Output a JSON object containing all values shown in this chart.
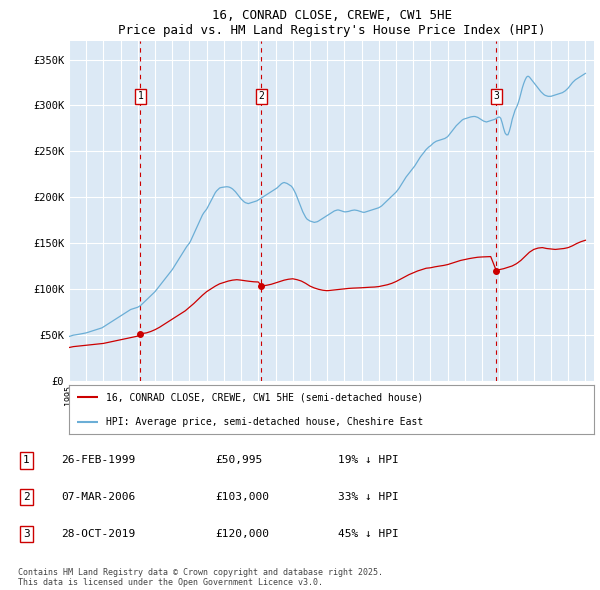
{
  "title": "16, CONRAD CLOSE, CREWE, CW1 5HE",
  "subtitle": "Price paid vs. HM Land Registry's House Price Index (HPI)",
  "ylabel_ticks": [
    "£0",
    "£50K",
    "£100K",
    "£150K",
    "£200K",
    "£250K",
    "£300K",
    "£350K"
  ],
  "ytick_values": [
    0,
    50000,
    100000,
    150000,
    200000,
    250000,
    300000,
    350000
  ],
  "ylim": [
    0,
    370000
  ],
  "xlim_start": 1995.0,
  "xlim_end": 2025.5,
  "fig_bg_color": "#ffffff",
  "plot_bg_color": "#dce9f5",
  "grid_color": "#ffffff",
  "sale_color": "#cc0000",
  "hpi_color": "#6baed6",
  "sale_points": [
    {
      "year": 1999.15,
      "price": 50995
    },
    {
      "year": 2006.18,
      "price": 103000
    },
    {
      "year": 2019.82,
      "price": 120000
    }
  ],
  "sale_labels": [
    "1",
    "2",
    "3"
  ],
  "sale_vline_color": "#cc0000",
  "legend_entries": [
    "16, CONRAD CLOSE, CREWE, CW1 5HE (semi-detached house)",
    "HPI: Average price, semi-detached house, Cheshire East"
  ],
  "table_data": [
    {
      "num": "1",
      "date": "26-FEB-1999",
      "price": "£50,995",
      "hpi": "19% ↓ HPI"
    },
    {
      "num": "2",
      "date": "07-MAR-2006",
      "price": "£103,000",
      "hpi": "33% ↓ HPI"
    },
    {
      "num": "3",
      "date": "28-OCT-2019",
      "price": "£120,000",
      "hpi": "45% ↓ HPI"
    }
  ],
  "footer": "Contains HM Land Registry data © Crown copyright and database right 2025.\nThis data is licensed under the Open Government Licence v3.0.",
  "hpi_data_x": [
    1995.0,
    1995.083,
    1995.167,
    1995.25,
    1995.333,
    1995.417,
    1995.5,
    1995.583,
    1995.667,
    1995.75,
    1995.833,
    1995.917,
    1996.0,
    1996.083,
    1996.167,
    1996.25,
    1996.333,
    1996.417,
    1996.5,
    1996.583,
    1996.667,
    1996.75,
    1996.833,
    1996.917,
    1997.0,
    1997.083,
    1997.167,
    1997.25,
    1997.333,
    1997.417,
    1997.5,
    1997.583,
    1997.667,
    1997.75,
    1997.833,
    1997.917,
    1998.0,
    1998.083,
    1998.167,
    1998.25,
    1998.333,
    1998.417,
    1998.5,
    1998.583,
    1998.667,
    1998.75,
    1998.833,
    1998.917,
    1999.0,
    1999.083,
    1999.167,
    1999.25,
    1999.333,
    1999.417,
    1999.5,
    1999.583,
    1999.667,
    1999.75,
    1999.833,
    1999.917,
    2000.0,
    2000.083,
    2000.167,
    2000.25,
    2000.333,
    2000.417,
    2000.5,
    2000.583,
    2000.667,
    2000.75,
    2000.833,
    2000.917,
    2001.0,
    2001.083,
    2001.167,
    2001.25,
    2001.333,
    2001.417,
    2001.5,
    2001.583,
    2001.667,
    2001.75,
    2001.833,
    2001.917,
    2002.0,
    2002.083,
    2002.167,
    2002.25,
    2002.333,
    2002.417,
    2002.5,
    2002.583,
    2002.667,
    2002.75,
    2002.833,
    2002.917,
    2003.0,
    2003.083,
    2003.167,
    2003.25,
    2003.333,
    2003.417,
    2003.5,
    2003.583,
    2003.667,
    2003.75,
    2003.833,
    2003.917,
    2004.0,
    2004.083,
    2004.167,
    2004.25,
    2004.333,
    2004.417,
    2004.5,
    2004.583,
    2004.667,
    2004.75,
    2004.833,
    2004.917,
    2005.0,
    2005.083,
    2005.167,
    2005.25,
    2005.333,
    2005.417,
    2005.5,
    2005.583,
    2005.667,
    2005.75,
    2005.833,
    2005.917,
    2006.0,
    2006.083,
    2006.167,
    2006.25,
    2006.333,
    2006.417,
    2006.5,
    2006.583,
    2006.667,
    2006.75,
    2006.833,
    2006.917,
    2007.0,
    2007.083,
    2007.167,
    2007.25,
    2007.333,
    2007.417,
    2007.5,
    2007.583,
    2007.667,
    2007.75,
    2007.833,
    2007.917,
    2008.0,
    2008.083,
    2008.167,
    2008.25,
    2008.333,
    2008.417,
    2008.5,
    2008.583,
    2008.667,
    2008.75,
    2008.833,
    2008.917,
    2009.0,
    2009.083,
    2009.167,
    2009.25,
    2009.333,
    2009.417,
    2009.5,
    2009.583,
    2009.667,
    2009.75,
    2009.833,
    2009.917,
    2010.0,
    2010.083,
    2010.167,
    2010.25,
    2010.333,
    2010.417,
    2010.5,
    2010.583,
    2010.667,
    2010.75,
    2010.833,
    2010.917,
    2011.0,
    2011.083,
    2011.167,
    2011.25,
    2011.333,
    2011.417,
    2011.5,
    2011.583,
    2011.667,
    2011.75,
    2011.833,
    2011.917,
    2012.0,
    2012.083,
    2012.167,
    2012.25,
    2012.333,
    2012.417,
    2012.5,
    2012.583,
    2012.667,
    2012.75,
    2012.833,
    2012.917,
    2013.0,
    2013.083,
    2013.167,
    2013.25,
    2013.333,
    2013.417,
    2013.5,
    2013.583,
    2013.667,
    2013.75,
    2013.833,
    2013.917,
    2014.0,
    2014.083,
    2014.167,
    2014.25,
    2014.333,
    2014.417,
    2014.5,
    2014.583,
    2014.667,
    2014.75,
    2014.833,
    2014.917,
    2015.0,
    2015.083,
    2015.167,
    2015.25,
    2015.333,
    2015.417,
    2015.5,
    2015.583,
    2015.667,
    2015.75,
    2015.833,
    2015.917,
    2016.0,
    2016.083,
    2016.167,
    2016.25,
    2016.333,
    2016.417,
    2016.5,
    2016.583,
    2016.667,
    2016.75,
    2016.833,
    2016.917,
    2017.0,
    2017.083,
    2017.167,
    2017.25,
    2017.333,
    2017.417,
    2017.5,
    2017.583,
    2017.667,
    2017.75,
    2017.833,
    2017.917,
    2018.0,
    2018.083,
    2018.167,
    2018.25,
    2018.333,
    2018.417,
    2018.5,
    2018.583,
    2018.667,
    2018.75,
    2018.833,
    2018.917,
    2019.0,
    2019.083,
    2019.167,
    2019.25,
    2019.333,
    2019.417,
    2019.5,
    2019.583,
    2019.667,
    2019.75,
    2019.833,
    2019.917,
    2020.0,
    2020.083,
    2020.167,
    2020.25,
    2020.333,
    2020.417,
    2020.5,
    2020.583,
    2020.667,
    2020.75,
    2020.833,
    2020.917,
    2021.0,
    2021.083,
    2021.167,
    2021.25,
    2021.333,
    2021.417,
    2021.5,
    2021.583,
    2021.667,
    2021.75,
    2021.833,
    2021.917,
    2022.0,
    2022.083,
    2022.167,
    2022.25,
    2022.333,
    2022.417,
    2022.5,
    2022.583,
    2022.667,
    2022.75,
    2022.833,
    2022.917,
    2023.0,
    2023.083,
    2023.167,
    2023.25,
    2023.333,
    2023.417,
    2023.5,
    2023.583,
    2023.667,
    2023.75,
    2023.833,
    2023.917,
    2024.0,
    2024.083,
    2024.167,
    2024.25,
    2024.333,
    2024.417,
    2024.5,
    2024.583,
    2024.667,
    2024.75,
    2024.833,
    2024.917,
    2025.0
  ],
  "hpi_data_y": [
    48000,
    48500,
    49000,
    49500,
    49800,
    50000,
    50200,
    50500,
    50800,
    51000,
    51300,
    51600,
    52000,
    52500,
    53000,
    53500,
    54000,
    54500,
    55000,
    55500,
    56000,
    56500,
    57000,
    57500,
    58500,
    59500,
    60500,
    61500,
    62500,
    63500,
    64500,
    65500,
    66500,
    67500,
    68500,
    69500,
    70500,
    71500,
    72500,
    73500,
    74500,
    75500,
    76500,
    77500,
    78000,
    78500,
    79000,
    79500,
    80000,
    81000,
    82000,
    83500,
    85000,
    86500,
    88000,
    89500,
    91000,
    92500,
    94000,
    95500,
    97000,
    99000,
    101000,
    103000,
    105000,
    107000,
    109000,
    111000,
    113000,
    115000,
    117000,
    119000,
    121000,
    123500,
    126000,
    128500,
    131000,
    133500,
    136000,
    138500,
    141000,
    143500,
    146000,
    148000,
    150000,
    153000,
    156500,
    160000,
    163500,
    167000,
    170500,
    174000,
    177500,
    180500,
    183000,
    185000,
    187000,
    190000,
    193000,
    196000,
    199000,
    202000,
    205000,
    207000,
    208500,
    210000,
    210500,
    210800,
    211000,
    211200,
    211400,
    211200,
    210800,
    210000,
    209000,
    207500,
    206000,
    204000,
    202000,
    200000,
    198000,
    196500,
    195000,
    194000,
    193500,
    193000,
    193500,
    194000,
    194500,
    195000,
    195500,
    196000,
    197000,
    198000,
    199000,
    200000,
    201000,
    202000,
    203000,
    204000,
    205000,
    206000,
    207000,
    208000,
    209000,
    210000,
    211500,
    213000,
    214500,
    215500,
    216000,
    215500,
    215000,
    214000,
    213000,
    212000,
    210000,
    207000,
    204000,
    200000,
    196000,
    192000,
    188000,
    184000,
    181000,
    178000,
    176000,
    175000,
    174000,
    173500,
    173000,
    172500,
    172800,
    173200,
    174000,
    175000,
    176000,
    177000,
    178000,
    179000,
    180000,
    181000,
    182000,
    183000,
    184000,
    185000,
    185500,
    186000,
    186000,
    185500,
    185000,
    184500,
    184000,
    184000,
    184200,
    184500,
    185000,
    185500,
    185800,
    186000,
    185800,
    185500,
    185000,
    184500,
    184000,
    183500,
    183500,
    184000,
    184500,
    185000,
    185500,
    186000,
    186500,
    187000,
    187500,
    188000,
    188500,
    189500,
    190500,
    192000,
    193500,
    195000,
    196500,
    198000,
    199500,
    201000,
    202500,
    204000,
    205500,
    207500,
    209500,
    212000,
    214500,
    217000,
    219500,
    222000,
    224000,
    226000,
    228000,
    230000,
    232000,
    234000,
    236500,
    239000,
    241500,
    244000,
    246000,
    248000,
    250000,
    252000,
    253500,
    255000,
    256000,
    257500,
    259000,
    260000,
    261000,
    261500,
    262000,
    262500,
    263000,
    263500,
    264000,
    265000,
    266000,
    268000,
    270000,
    272000,
    274000,
    276000,
    278000,
    279500,
    281000,
    282500,
    284000,
    285000,
    285500,
    286000,
    286500,
    287000,
    287500,
    287800,
    288000,
    288000,
    287500,
    287000,
    286000,
    285000,
    284000,
    283000,
    282500,
    282000,
    282500,
    283000,
    283500,
    284000,
    284500,
    285000,
    286000,
    287000,
    287500,
    286000,
    281000,
    275000,
    270000,
    268000,
    268000,
    272000,
    278000,
    285000,
    290000,
    295000,
    298000,
    302000,
    307000,
    313000,
    319000,
    324000,
    328000,
    331000,
    332000,
    331000,
    329000,
    327000,
    325000,
    323000,
    321000,
    319000,
    317000,
    315000,
    313500,
    312000,
    311000,
    310500,
    310000,
    310000,
    310000,
    310500,
    311000,
    311500,
    312000,
    312500,
    313000,
    313500,
    314000,
    315000,
    316000,
    317500,
    319000,
    321000,
    323000,
    325000,
    326500,
    328000,
    329000,
    330000,
    331000,
    332000,
    333000,
    334000,
    335000
  ],
  "red_data_x": [
    1995.0,
    1995.25,
    1995.5,
    1995.75,
    1996.0,
    1996.25,
    1996.5,
    1996.75,
    1997.0,
    1997.25,
    1997.5,
    1997.75,
    1998.0,
    1998.25,
    1998.5,
    1998.75,
    1999.0,
    1999.15,
    1999.5,
    1999.75,
    2000.0,
    2000.25,
    2000.5,
    2000.75,
    2001.0,
    2001.25,
    2001.5,
    2001.75,
    2002.0,
    2002.25,
    2002.5,
    2002.75,
    2003.0,
    2003.25,
    2003.5,
    2003.75,
    2004.0,
    2004.25,
    2004.5,
    2004.75,
    2005.0,
    2005.25,
    2005.5,
    2005.75,
    2006.0,
    2006.18,
    2006.5,
    2006.75,
    2007.0,
    2007.25,
    2007.5,
    2007.75,
    2008.0,
    2008.25,
    2008.5,
    2008.75,
    2009.0,
    2009.25,
    2009.5,
    2009.75,
    2010.0,
    2010.25,
    2010.5,
    2010.75,
    2011.0,
    2011.25,
    2011.5,
    2011.75,
    2012.0,
    2012.25,
    2012.5,
    2012.75,
    2013.0,
    2013.25,
    2013.5,
    2013.75,
    2014.0,
    2014.25,
    2014.5,
    2014.75,
    2015.0,
    2015.25,
    2015.5,
    2015.75,
    2016.0,
    2016.25,
    2016.5,
    2016.75,
    2017.0,
    2017.25,
    2017.5,
    2017.75,
    2018.0,
    2018.25,
    2018.5,
    2018.75,
    2019.0,
    2019.25,
    2019.5,
    2019.82,
    2020.0,
    2020.25,
    2020.5,
    2020.75,
    2021.0,
    2021.25,
    2021.5,
    2021.75,
    2022.0,
    2022.25,
    2022.5,
    2022.75,
    2023.0,
    2023.25,
    2023.5,
    2023.75,
    2024.0,
    2024.25,
    2024.5,
    2024.75,
    2025.0
  ],
  "red_data_y": [
    36000,
    37000,
    37500,
    38000,
    38500,
    39000,
    39500,
    40000,
    40500,
    41500,
    42500,
    43500,
    44500,
    45500,
    46500,
    47500,
    48500,
    50995,
    52000,
    53500,
    55500,
    58000,
    61000,
    64000,
    67000,
    70000,
    73000,
    76000,
    80000,
    84000,
    88500,
    93000,
    97000,
    100000,
    103000,
    105500,
    107000,
    108500,
    109500,
    110000,
    109500,
    108800,
    108200,
    107700,
    107500,
    103000,
    104000,
    105000,
    106500,
    108000,
    109500,
    110500,
    111000,
    110000,
    108500,
    106000,
    103000,
    101000,
    99500,
    98500,
    98000,
    98500,
    99000,
    99500,
    100000,
    100500,
    100800,
    101000,
    101200,
    101500,
    101800,
    102000,
    102500,
    103500,
    104500,
    106000,
    108000,
    110500,
    113000,
    115500,
    117500,
    119500,
    121000,
    122500,
    123000,
    124000,
    124800,
    125500,
    126500,
    128000,
    129500,
    131000,
    132000,
    133000,
    133800,
    134500,
    134800,
    135000,
    135200,
    120000,
    121000,
    122000,
    123500,
    125000,
    127500,
    131000,
    135500,
    140000,
    143000,
    144500,
    145000,
    144000,
    143500,
    143000,
    143500,
    144000,
    145000,
    147000,
    149500,
    151500,
    153000
  ]
}
